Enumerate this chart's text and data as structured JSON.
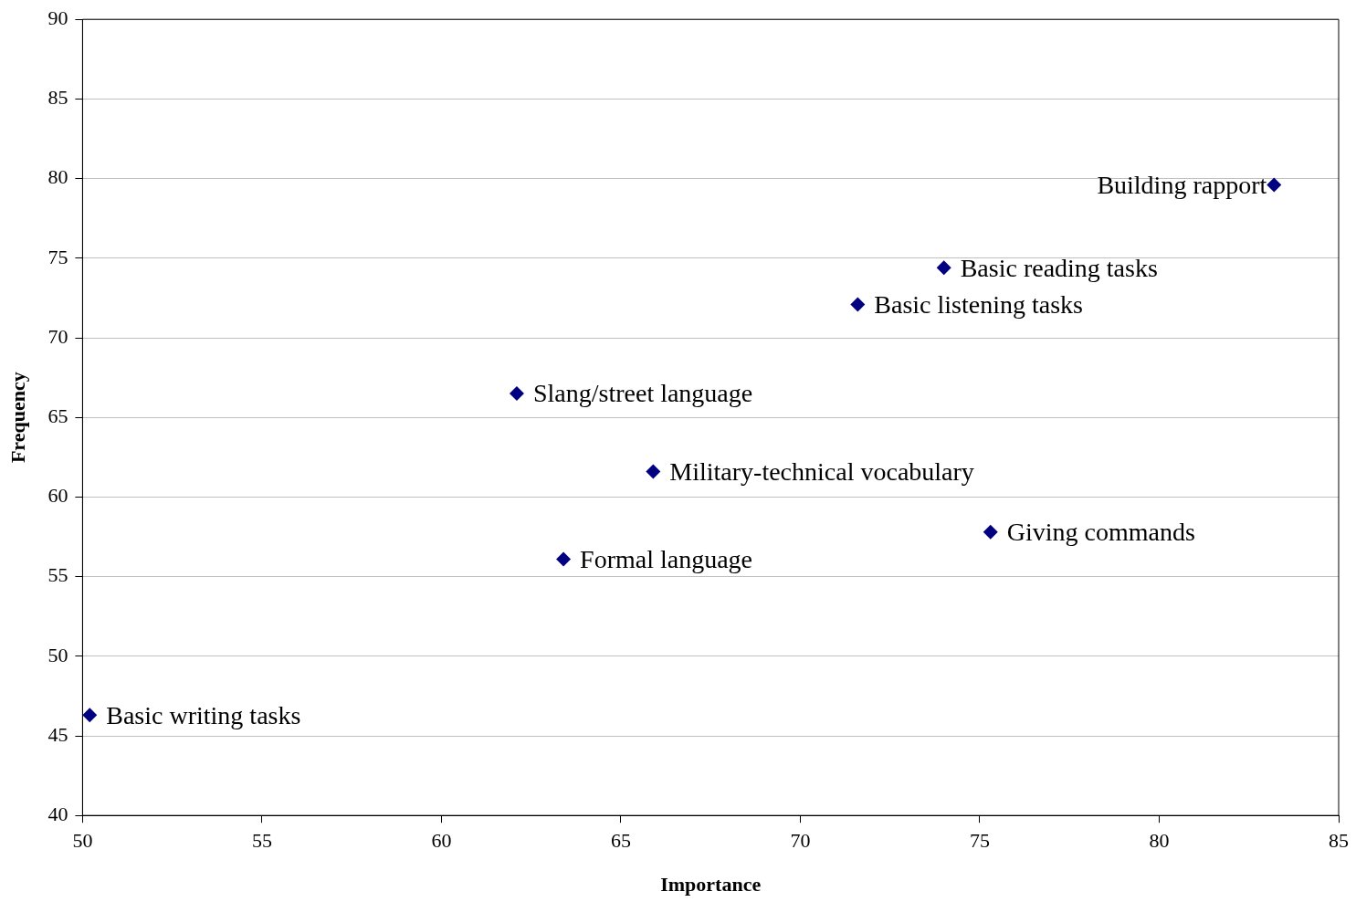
{
  "chart_data": {
    "type": "scatter",
    "xlabel": "Importance",
    "ylabel": "Frequency",
    "x": [
      83.2,
      74.0,
      71.6,
      62.1,
      65.9,
      63.4,
      75.3,
      50.2
    ],
    "values": [
      79.6,
      74.4,
      72.1,
      66.5,
      61.6,
      56.1,
      57.8,
      46.3
    ],
    "color": "#000080",
    "marker": "diamond",
    "grid": "y",
    "legend": false,
    "xlim": [
      50,
      85
    ],
    "xticks": [
      50,
      55,
      60,
      65,
      70,
      75,
      80,
      85
    ],
    "ylim": [
      40,
      90
    ],
    "yticks": [
      40,
      45,
      50,
      55,
      60,
      65,
      70,
      75,
      80,
      85,
      90
    ],
    "annotations": [
      {
        "text": "Building rapport",
        "x": 83.2,
        "y": 79.6
      },
      {
        "text": "Basic reading tasks",
        "x": 74.0,
        "y": 74.4
      },
      {
        "text": "Basic listening tasks",
        "x": 71.6,
        "y": 72.1
      },
      {
        "text": "Slang/street language",
        "x": 62.1,
        "y": 66.5
      },
      {
        "text": "Military-technical vocabulary",
        "x": 65.9,
        "y": 61.6
      },
      {
        "text": "Formal language",
        "x": 63.4,
        "y": 56.1
      },
      {
        "text": "Giving commands",
        "x": 75.3,
        "y": 57.8
      },
      {
        "text": "Basic writing tasks",
        "x": 50.2,
        "y": 46.3
      }
    ]
  }
}
